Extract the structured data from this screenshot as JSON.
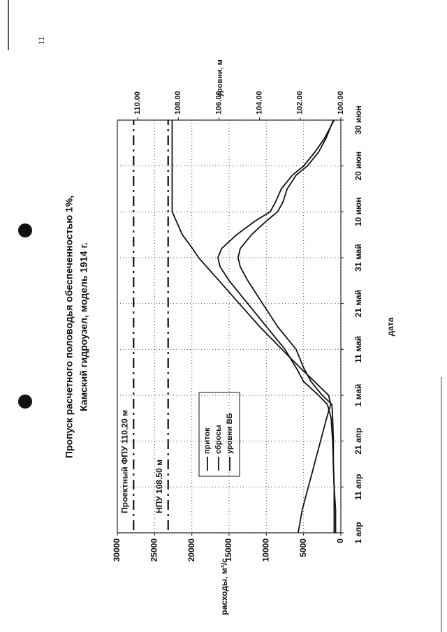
{
  "page_number": 11,
  "chart_data": {
    "type": "line",
    "title": "Пропуск расчетного половодья обеспеченностью 1%,",
    "subtitle": "Камский гидроузел, модель 1914 г.",
    "x_label": "дата",
    "y_label": "расходы, м³/с",
    "y2_label": "уровни, м",
    "x": [
      0,
      5,
      10,
      15,
      20,
      25,
      28,
      30,
      33,
      36,
      40,
      45,
      50,
      55,
      58,
      60,
      62,
      65,
      68,
      70,
      72,
      75,
      78,
      80,
      83,
      86,
      90
    ],
    "xlim": [
      0,
      90
    ],
    "xticks": [
      {
        "value": 0,
        "label": "1 апр"
      },
      {
        "value": 10,
        "label": "11 апр"
      },
      {
        "value": 20,
        "label": "21 апр"
      },
      {
        "value": 30,
        "label": "1 май"
      },
      {
        "value": 40,
        "label": "11 май"
      },
      {
        "value": 50,
        "label": "21 май"
      },
      {
        "value": 60,
        "label": "31 май"
      },
      {
        "value": 70,
        "label": "10 июн"
      },
      {
        "value": 80,
        "label": "20 июн"
      },
      {
        "value": 90,
        "label": "30 июн"
      }
    ],
    "ylim": [
      0,
      30000
    ],
    "yticks": [
      0,
      5000,
      10000,
      15000,
      20000,
      25000,
      30000
    ],
    "y2lim": [
      100,
      111
    ],
    "y2ticks": [
      {
        "value": 100,
        "label": "100.00"
      },
      {
        "value": 102,
        "label": "102.00"
      },
      {
        "value": 104,
        "label": "104.00"
      },
      {
        "value": 106,
        "label": "106.00"
      },
      {
        "value": 108,
        "label": "108.00"
      },
      {
        "value": 110,
        "label": "110.00"
      }
    ],
    "grid": true,
    "series": [
      {
        "name": "приток",
        "color": "#111111",
        "values": [
          700,
          700,
          900,
          1000,
          1100,
          1300,
          1800,
          3000,
          5000,
          6000,
          7500,
          10000,
          12500,
          15000,
          16200,
          16500,
          16000,
          14000,
          11500,
          9500,
          8800,
          8000,
          6500,
          5000,
          3500,
          2200,
          900
        ]
      },
      {
        "name": "сбросы",
        "color": "#111111",
        "values": [
          900,
          900,
          900,
          1000,
          1000,
          1100,
          1200,
          2500,
          4000,
          5000,
          6000,
          8500,
          10500,
          12500,
          13500,
          13800,
          13500,
          12000,
          10000,
          8500,
          7800,
          7200,
          6000,
          4500,
          3000,
          2000,
          1000
        ]
      },
      {
        "name": "уровни ВБ",
        "color": "#111111",
        "axis": "y2",
        "values": [
          102.1,
          101.9,
          101.6,
          101.3,
          101.0,
          100.7,
          100.5,
          100.6,
          101.3,
          102.0,
          102.9,
          104.0,
          105.0,
          106.0,
          106.6,
          107.0,
          107.3,
          107.8,
          108.1,
          108.3,
          108.3,
          108.3,
          108.3,
          108.3,
          108.3,
          108.3,
          108.3
        ]
      }
    ],
    "reference_lines": [
      {
        "label": "Проектный ФПУ 110.20 м",
        "value": 110.2,
        "axis": "y2"
      },
      {
        "label": "НПУ 108.50 м",
        "value": 108.5,
        "axis": "y2"
      }
    ]
  }
}
